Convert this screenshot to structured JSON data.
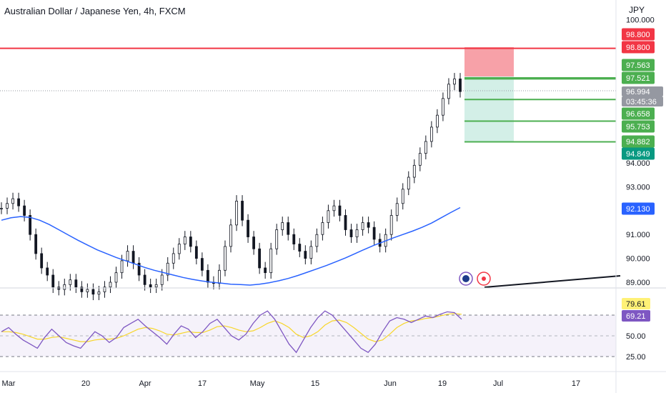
{
  "header": {
    "title": "Australian Dollar / Japanese Yen, 4h, FXCM",
    "currency": "JPY"
  },
  "colors": {
    "resistance": "#f23645",
    "target": "#4caf50",
    "ma": "#2962ff",
    "rsi": "#7e57c2",
    "rsi_ma": "#f7d62b",
    "stop_zone": "#f7a1a8",
    "profit_zone": "#d3efe7",
    "candle": "#131722"
  },
  "chart_data": [
    {
      "type": "line",
      "name": "price",
      "x_ticks": [
        "Mar",
        "20",
        "Apr",
        "17",
        "May",
        "15",
        "Jun",
        "19",
        "Jul",
        "17"
      ],
      "y_ticks": [
        "100.000",
        "89.000",
        "90.000",
        "91.000",
        "92.000",
        "93.000",
        "94.000"
      ],
      "ylim": [
        88.9,
        100.0
      ],
      "close": [
        92.1,
        92.3,
        92.5,
        92.2,
        91.8,
        91.0,
        90.2,
        89.6,
        89.3,
        88.8,
        88.7,
        88.9,
        89.1,
        88.8,
        88.6,
        88.7,
        88.5,
        88.6,
        88.8,
        89.0,
        89.4,
        89.9,
        90.3,
        89.8,
        89.3,
        88.9,
        88.8,
        88.9,
        89.3,
        89.8,
        90.2,
        90.6,
        90.9,
        90.5,
        90.0,
        89.5,
        89.0,
        88.95,
        89.5,
        90.5,
        91.4,
        92.4,
        91.6,
        90.9,
        90.4,
        89.6,
        89.4,
        90.4,
        91.2,
        91.5,
        91.0,
        90.6,
        90.3,
        90.0,
        90.5,
        91.0,
        91.5,
        92.0,
        92.2,
        91.8,
        91.2,
        90.9,
        91.2,
        91.5,
        91.3,
        90.8,
        90.5,
        91.0,
        91.8,
        92.3,
        92.9,
        93.4,
        93.9,
        94.4,
        94.9,
        95.5,
        96.0,
        96.7,
        97.3,
        97.52,
        96.99
      ],
      "ma": [
        91.6,
        91.7,
        91.75,
        91.72,
        91.6,
        91.42,
        91.2,
        90.98,
        90.76,
        90.56,
        90.36,
        90.2,
        90.04,
        89.9,
        89.76,
        89.62,
        89.5,
        89.4,
        89.3,
        89.2,
        89.12,
        89.05,
        89.0,
        88.96,
        88.92,
        88.9,
        88.88,
        88.92,
        88.98,
        89.06,
        89.16,
        89.28,
        89.42,
        89.56,
        89.7,
        89.86,
        90.02,
        90.2,
        90.38,
        90.55,
        90.7,
        90.86,
        91.0,
        91.14,
        91.3,
        91.48,
        91.7,
        91.92,
        92.13
      ],
      "levels": [
        {
          "value": "98.800",
          "role": "resistance"
        },
        {
          "value": "97.563",
          "role": "target"
        },
        {
          "value": "97.521",
          "role": "target"
        },
        {
          "value": "96.658",
          "role": "target"
        },
        {
          "value": "95.753",
          "role": "target"
        },
        {
          "value": "94.882",
          "role": "target"
        }
      ],
      "tags": [
        {
          "label": "98.800",
          "kind": "red"
        },
        {
          "label": "98.800",
          "kind": "red"
        },
        {
          "label": "97.563",
          "kind": "green"
        },
        {
          "label": "97.521",
          "kind": "green"
        },
        {
          "label": "96.994",
          "kind": "grey"
        },
        {
          "label": "03:45:36",
          "kind": "grey"
        },
        {
          "label": "96.658",
          "kind": "green"
        },
        {
          "label": "95.753",
          "kind": "green"
        },
        {
          "label": "94.882",
          "kind": "green"
        },
        {
          "label": "94.849",
          "kind": "teal"
        },
        {
          "label": "92.130",
          "kind": "blue"
        }
      ]
    },
    {
      "type": "line",
      "name": "RSI",
      "y_ticks": [
        "50.00",
        "25.00"
      ],
      "ylim": [
        22,
        90
      ],
      "rsi": [
        55,
        60,
        52,
        45,
        40,
        35,
        48,
        58,
        50,
        42,
        38,
        35,
        45,
        55,
        50,
        42,
        48,
        60,
        65,
        70,
        62,
        55,
        48,
        40,
        52,
        62,
        58,
        48,
        55,
        65,
        70,
        60,
        50,
        45,
        52,
        65,
        75,
        80,
        70,
        55,
        40,
        30,
        45,
        60,
        72,
        80,
        75,
        65,
        55,
        45,
        35,
        30,
        40,
        55,
        68,
        72,
        70,
        66,
        70,
        74,
        72,
        76,
        79,
        78,
        70
      ],
      "rsi_ma": [
        55,
        55,
        54,
        52,
        49,
        46,
        46,
        48,
        49,
        47,
        45,
        43,
        43,
        45,
        46,
        46,
        47,
        50,
        54,
        58,
        60,
        59,
        56,
        52,
        51,
        53,
        55,
        54,
        54,
        57,
        61,
        62,
        60,
        57,
        55,
        56,
        60,
        65,
        68,
        65,
        60,
        52,
        48,
        50,
        55,
        63,
        68,
        69,
        66,
        60,
        53,
        46,
        43,
        45,
        52,
        60,
        65,
        68,
        69,
        71,
        72,
        74,
        76,
        77,
        76
      ],
      "tags": [
        {
          "label": "79.61",
          "kind": "yellow"
        },
        {
          "label": "69.21",
          "kind": "purple"
        }
      ]
    }
  ]
}
